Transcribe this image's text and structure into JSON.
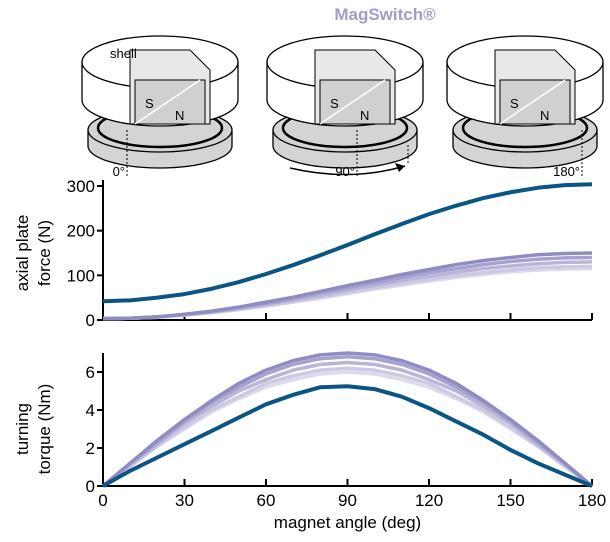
{
  "diagram": {
    "title": "MagSwitch®",
    "shell_label": "shell",
    "magnets": [
      {
        "south": "S",
        "north": "N",
        "angle": "0°"
      },
      {
        "south": "S",
        "north": "N",
        "angle": "90°"
      },
      {
        "south": "S",
        "north": "N",
        "angle": "180°"
      }
    ]
  },
  "chart_data": [
    {
      "type": "line",
      "ylabel": [
        "axial plate",
        "force (N)"
      ],
      "x": [
        0,
        10,
        20,
        30,
        40,
        50,
        60,
        70,
        80,
        90,
        100,
        110,
        120,
        130,
        140,
        150,
        160,
        170,
        180
      ],
      "xlim": [
        0,
        180
      ],
      "xticks": [
        0,
        30,
        60,
        90,
        120,
        150,
        180
      ],
      "ylim": [
        0,
        300
      ],
      "yticks": [
        0,
        100,
        200,
        300
      ],
      "series": [
        {
          "color": "#dcdaec",
          "values": [
            3,
            4,
            6,
            11,
            16,
            23,
            31,
            40,
            49,
            59,
            69,
            78,
            87,
            95,
            102,
            108,
            112,
            114,
            115
          ]
        },
        {
          "color": "#cbc9e3",
          "values": [
            3,
            4,
            7,
            11,
            17,
            24,
            32,
            41,
            51,
            62,
            72,
            82,
            91,
            99,
            106,
            112,
            117,
            119,
            120
          ]
        },
        {
          "color": "#b8b5d9",
          "values": [
            3,
            4,
            7,
            12,
            18,
            26,
            35,
            45,
            55,
            67,
            78,
            88,
            98,
            107,
            115,
            121,
            126,
            129,
            130
          ]
        },
        {
          "color": "#a5a2cf",
          "values": [
            3,
            4,
            7,
            12,
            19,
            28,
            37,
            48,
            60,
            72,
            83,
            95,
            106,
            115,
            124,
            131,
            136,
            139,
            140
          ]
        },
        {
          "color": "#8f8cc4",
          "values": [
            3,
            4,
            7,
            13,
            20,
            29,
            40,
            51,
            64,
            77,
            89,
            102,
            113,
            124,
            133,
            140,
            146,
            149,
            150
          ]
        },
        {
          "color": "#0b5584",
          "values": [
            42,
            44,
            50,
            58,
            70,
            85,
            103,
            123,
            145,
            168,
            192,
            215,
            237,
            256,
            273,
            286,
            296,
            302,
            304
          ]
        }
      ]
    },
    {
      "type": "line",
      "ylabel": [
        "turning",
        "torque (Nm)"
      ],
      "xlabel": "magnet angle (deg)",
      "x": [
        0,
        10,
        20,
        30,
        40,
        50,
        60,
        70,
        80,
        90,
        100,
        110,
        120,
        130,
        140,
        150,
        160,
        170,
        180
      ],
      "xlim": [
        0,
        180
      ],
      "xticks": [
        0,
        30,
        60,
        90,
        120,
        150,
        180
      ],
      "ylim": [
        0,
        7
      ],
      "yticks": [
        0,
        2,
        4,
        6
      ],
      "series": [
        {
          "color": "#dcdaec",
          "values": [
            0,
            1.0,
            2.1,
            3.0,
            3.9,
            4.6,
            5.2,
            5.6,
            5.9,
            6.0,
            5.9,
            5.6,
            5.2,
            4.6,
            3.9,
            3.0,
            2.1,
            1.0,
            0
          ]
        },
        {
          "color": "#cbc9e3",
          "values": [
            0,
            1.1,
            2.1,
            3.1,
            4.0,
            4.7,
            5.4,
            5.8,
            6.1,
            6.2,
            6.1,
            5.8,
            5.4,
            4.7,
            4.0,
            3.1,
            2.1,
            1.1,
            0
          ]
        },
        {
          "color": "#b8b5d9",
          "values": [
            0,
            1.1,
            2.2,
            3.3,
            4.2,
            5.0,
            5.6,
            6.1,
            6.4,
            6.5,
            6.4,
            6.1,
            5.6,
            5.0,
            4.2,
            3.3,
            2.2,
            1.1,
            0
          ]
        },
        {
          "color": "#a5a2cf",
          "values": [
            0,
            1.2,
            2.3,
            3.4,
            4.4,
            5.2,
            5.9,
            6.4,
            6.7,
            6.8,
            6.7,
            6.4,
            5.9,
            5.2,
            4.4,
            3.4,
            2.3,
            1.2,
            0
          ]
        },
        {
          "color": "#8f8cc4",
          "values": [
            0,
            1.2,
            2.4,
            3.5,
            4.5,
            5.4,
            6.1,
            6.6,
            6.9,
            7.0,
            6.9,
            6.6,
            6.1,
            5.4,
            4.5,
            3.5,
            2.4,
            1.2,
            0
          ]
        },
        {
          "color": "#0b5584",
          "values": [
            0,
            0.8,
            1.5,
            2.2,
            2.9,
            3.6,
            4.3,
            4.8,
            5.2,
            5.25,
            5.1,
            4.7,
            4.1,
            3.4,
            2.7,
            1.9,
            1.2,
            0.6,
            0
          ]
        }
      ]
    }
  ]
}
